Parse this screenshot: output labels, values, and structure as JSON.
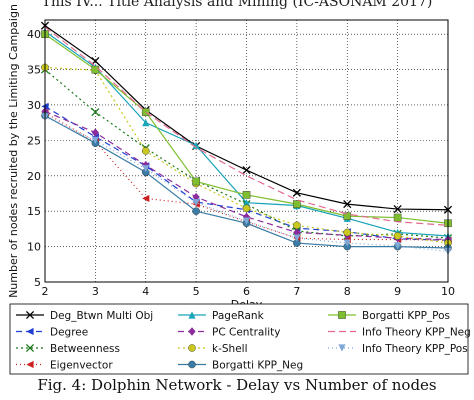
{
  "caption_top": "This IV... Title Analysis and Mining (IC-ASONAM 2017)",
  "caption_bottom": "Fig. 4: Dolphin Network - Delay vs Number of nodes",
  "chart_data": {
    "type": "line",
    "xlabel": "Delay",
    "ylabel": "Number of nodes recruited by the Limiting Campaign",
    "x": [
      2,
      3,
      4,
      5,
      6,
      7,
      8,
      9,
      10
    ],
    "xlim": [
      2,
      10
    ],
    "ylim": [
      5,
      42
    ],
    "xticks": [
      "2",
      "3",
      "4",
      "5",
      "6",
      "7",
      "8",
      "9",
      "10"
    ],
    "yticks": [
      "5",
      "10",
      "15",
      "20",
      "25",
      "30",
      "35",
      "40"
    ],
    "grid": true,
    "legend_position": "below",
    "series": [
      {
        "name": "Deg_Btwn Multi Obj",
        "color": "#000000",
        "marker": "x",
        "dash": "",
        "values": [
          41.2,
          36.2,
          29.3,
          24.2,
          20.8,
          17.6,
          16.0,
          15.3,
          15.2
        ]
      },
      {
        "name": "Degree",
        "color": "#1f3fd0",
        "marker": "tri-left",
        "dash": "6,4",
        "values": [
          29.8,
          25.5,
          21.4,
          16.3,
          15.2,
          12.6,
          12.1,
          11.1,
          10.9
        ]
      },
      {
        "name": "Betweenness",
        "color": "#1a7a1a",
        "marker": "x",
        "dash": "2,3",
        "values": [
          35.0,
          29.0,
          23.9,
          19.3,
          16.0,
          12.2,
          11.5,
          11.8,
          11.2
        ]
      },
      {
        "name": "Eigenvector",
        "color": "#cc1f1f",
        "marker": "tri-left",
        "dash": "1,3",
        "values": [
          28.9,
          24.8,
          16.8,
          16.0,
          13.5,
          11.2,
          11.0,
          11.0,
          10.9
        ]
      },
      {
        "name": "PageRank",
        "color": "#17a3b8",
        "marker": "tri-up",
        "dash": "",
        "values": [
          40.4,
          35.3,
          27.5,
          24.3,
          16.2,
          15.8,
          14.0,
          12.0,
          11.5
        ]
      },
      {
        "name": "PC Centrality",
        "color": "#8b2b9c",
        "marker": "diamond",
        "dash": "6,4",
        "values": [
          29.1,
          26.1,
          21.5,
          17.0,
          14.2,
          12.0,
          11.6,
          11.2,
          11.0
        ]
      },
      {
        "name": "k-Shell",
        "color": "#c8c81e",
        "marker": "circle",
        "dash": "2,3",
        "values": [
          35.3,
          34.9,
          23.5,
          18.9,
          15.4,
          13.0,
          12.0,
          11.5,
          10.5
        ]
      },
      {
        "name": "Borgatti KPP_Neg",
        "color": "#3a7ca5",
        "marker": "circle",
        "dash": "",
        "values": [
          28.5,
          24.6,
          20.5,
          15.0,
          13.3,
          10.5,
          10.0,
          10.0,
          9.8
        ]
      },
      {
        "name": "Borgatti KPP_Pos",
        "color": "#7fbf2f",
        "marker": "square",
        "dash": "",
        "values": [
          40.0,
          35.0,
          29.0,
          19.2,
          17.3,
          16.0,
          14.3,
          14.1,
          13.3
        ]
      },
      {
        "name": "Info Theory KPP_Neg",
        "color": "#e36a8c",
        "marker": "none",
        "dash": "7,4",
        "values": [
          41.0,
          35.5,
          29.0,
          24.0,
          20.0,
          16.6,
          14.6,
          13.5,
          13.0
        ]
      },
      {
        "name": "Info Theory KPP_Pos",
        "color": "#7fa7d8",
        "marker": "tri-down",
        "dash": "1,3",
        "values": [
          28.3,
          25.0,
          21.0,
          16.2,
          13.6,
          11.2,
          10.5,
          10.1,
          9.3
        ]
      }
    ]
  }
}
